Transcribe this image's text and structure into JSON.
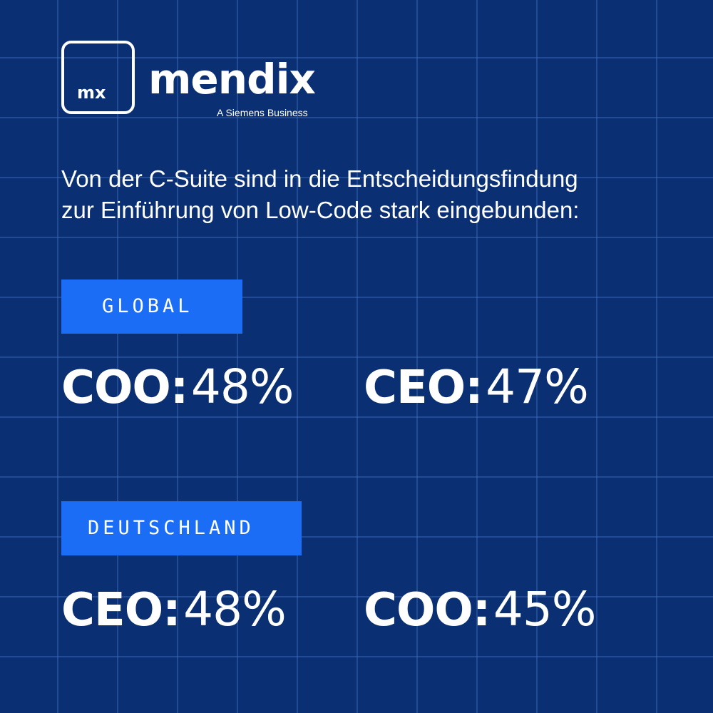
{
  "logo": {
    "icon_text": "mx",
    "wordmark": "mendix",
    "tagline": "A Siemens Business"
  },
  "headline": {
    "line1": "Von der C-Suite sind in die Entscheidungsfindung",
    "line2": "zur Einführung von Low-Code stark eingebunden:"
  },
  "sections": [
    {
      "label": "GLOBAL",
      "stats": [
        {
          "role": "COO:",
          "value": "48%"
        },
        {
          "role": "CEO:",
          "value": "47%"
        }
      ]
    },
    {
      "label": "DEUTSCHLAND",
      "stats": [
        {
          "role": "CEO:",
          "value": "48%"
        },
        {
          "role": "COO:",
          "value": "45%"
        }
      ]
    }
  ],
  "colors": {
    "background": "#0a2f72",
    "grid_line": "#3e6ebe",
    "tag_background": "#1b6df5",
    "text": "#ffffff"
  }
}
